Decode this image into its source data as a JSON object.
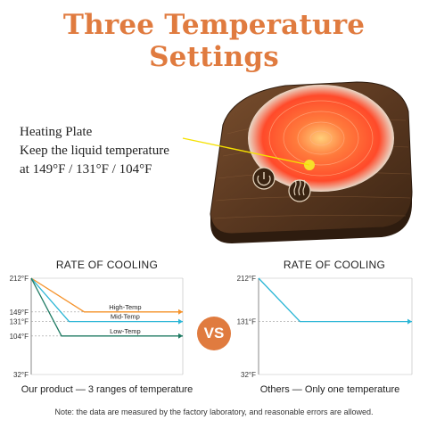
{
  "title": "Three Temperature Settings",
  "callout": {
    "line1": "Heating Plate",
    "line2": "Keep the liquid temperature",
    "line3": "at 149°F / 131°F / 104°F"
  },
  "colors": {
    "accent": "#e07b3f",
    "high": "#f5922a",
    "mid": "#2bb6d6",
    "low": "#1e7a62",
    "callout_line": "#f5e100"
  },
  "vs_label": "VS",
  "left_chart": {
    "title": "RATE OF COOLING",
    "caption": "Our product — 3 ranges of temperature",
    "ticks": [
      "212°F",
      "149°F",
      "131°F",
      "104°F",
      "32°F"
    ],
    "series_labels": [
      "High-Temp",
      "Mid-Temp",
      "Low-Temp"
    ]
  },
  "right_chart": {
    "title": "RATE OF COOLING",
    "caption": "Others — Only one temperature",
    "ticks": [
      "212°F",
      "131°F",
      "32°F"
    ]
  },
  "note": "Note: the data are measured by the factory laboratory, and reasonable errors are allowed.",
  "chart_data": [
    {
      "type": "line",
      "title": "RATE OF COOLING",
      "ylim": [
        32,
        212
      ],
      "y_ticks": [
        212,
        149,
        131,
        104,
        32
      ],
      "series": [
        {
          "name": "High-Temp",
          "x": [
            0,
            0.35,
            1
          ],
          "values": [
            212,
            149,
            149
          ]
        },
        {
          "name": "Mid-Temp",
          "x": [
            0,
            0.25,
            1
          ],
          "values": [
            212,
            131,
            131
          ]
        },
        {
          "name": "Low-Temp",
          "x": [
            0,
            0.2,
            1
          ],
          "values": [
            212,
            104,
            104
          ]
        }
      ]
    },
    {
      "type": "line",
      "title": "RATE OF COOLING",
      "ylim": [
        32,
        212
      ],
      "y_ticks": [
        212,
        131,
        32
      ],
      "series": [
        {
          "name": "",
          "x": [
            0,
            0.27,
            1
          ],
          "values": [
            212,
            131,
            131
          ]
        }
      ]
    }
  ]
}
